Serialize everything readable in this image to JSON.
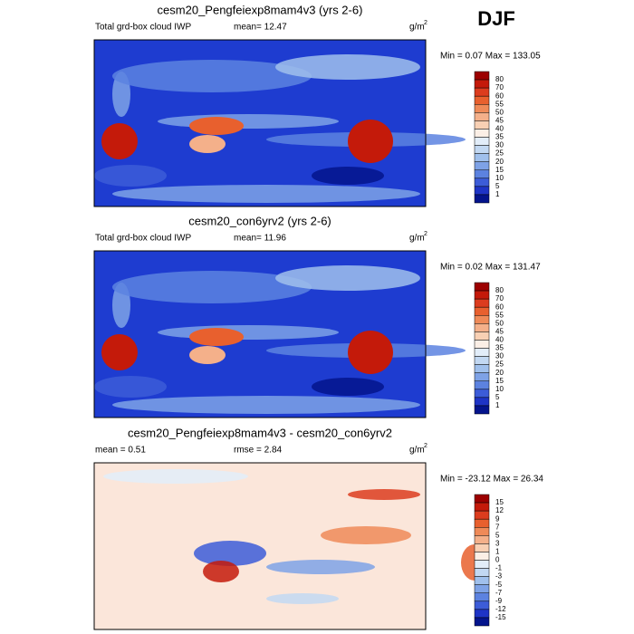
{
  "season": "DJF",
  "panels": [
    {
      "title": "cesm20_Pengfeiexp8mam4v3 (yrs 2-6)",
      "left_label": "Total grd-box cloud IWP",
      "stat1": "mean=  12.47",
      "units": "g/m",
      "units_sup": "2",
      "minmax": "Min =   0.07 Max = 133.05",
      "levels": [
        "80",
        "70",
        "60",
        "55",
        "50",
        "45",
        "40",
        "35",
        "30",
        "25",
        "20",
        "15",
        "10",
        "5",
        "1"
      ],
      "colors": [
        "#9c0000",
        "#c41a0a",
        "#dc3c1e",
        "#e8602e",
        "#ef8a58",
        "#f4b08a",
        "#f8d0b4",
        "#fbefe6",
        "#e2edf9",
        "#c2d8f2",
        "#a0c0ec",
        "#7ea2e6",
        "#5c82e0",
        "#3c5cd8",
        "#1e34c6",
        "#04148c"
      ]
    },
    {
      "title": "cesm20_con6yrv2 (yrs 2-6)",
      "left_label": "Total grd-box cloud IWP",
      "stat1": "mean=  11.96",
      "units": "g/m",
      "units_sup": "2",
      "minmax": "Min =   0.02 Max = 131.47",
      "levels": [
        "80",
        "70",
        "60",
        "55",
        "50",
        "45",
        "40",
        "35",
        "30",
        "25",
        "20",
        "15",
        "10",
        "5",
        "1"
      ],
      "colors": [
        "#9c0000",
        "#c41a0a",
        "#dc3c1e",
        "#e8602e",
        "#ef8a58",
        "#f4b08a",
        "#f8d0b4",
        "#fbefe6",
        "#e2edf9",
        "#c2d8f2",
        "#a0c0ec",
        "#7ea2e6",
        "#5c82e0",
        "#3c5cd8",
        "#1e34c6",
        "#04148c"
      ]
    },
    {
      "title": "cesm20_Pengfeiexp8mam4v3 - cesm20_con6yrv2",
      "left_label": "mean =   0.51",
      "stat1": "rmse =   2.84",
      "units": "g/m",
      "units_sup": "2",
      "minmax": "Min = -23.12 Max =  26.34",
      "levels": [
        "15",
        "12",
        "9",
        "7",
        "5",
        "3",
        "1",
        "0",
        "-1",
        "-3",
        "-5",
        "-7",
        "-9",
        "-12",
        "-15"
      ],
      "colors": [
        "#9c0000",
        "#c41a0a",
        "#dc3c1e",
        "#e8602e",
        "#ef8a58",
        "#f4b08a",
        "#f8d0b4",
        "#fbefe6",
        "#e2edf9",
        "#c2d8f2",
        "#a0c0ec",
        "#7ea2e6",
        "#5c82e0",
        "#3c5cd8",
        "#1e34c6",
        "#04148c"
      ]
    }
  ]
}
